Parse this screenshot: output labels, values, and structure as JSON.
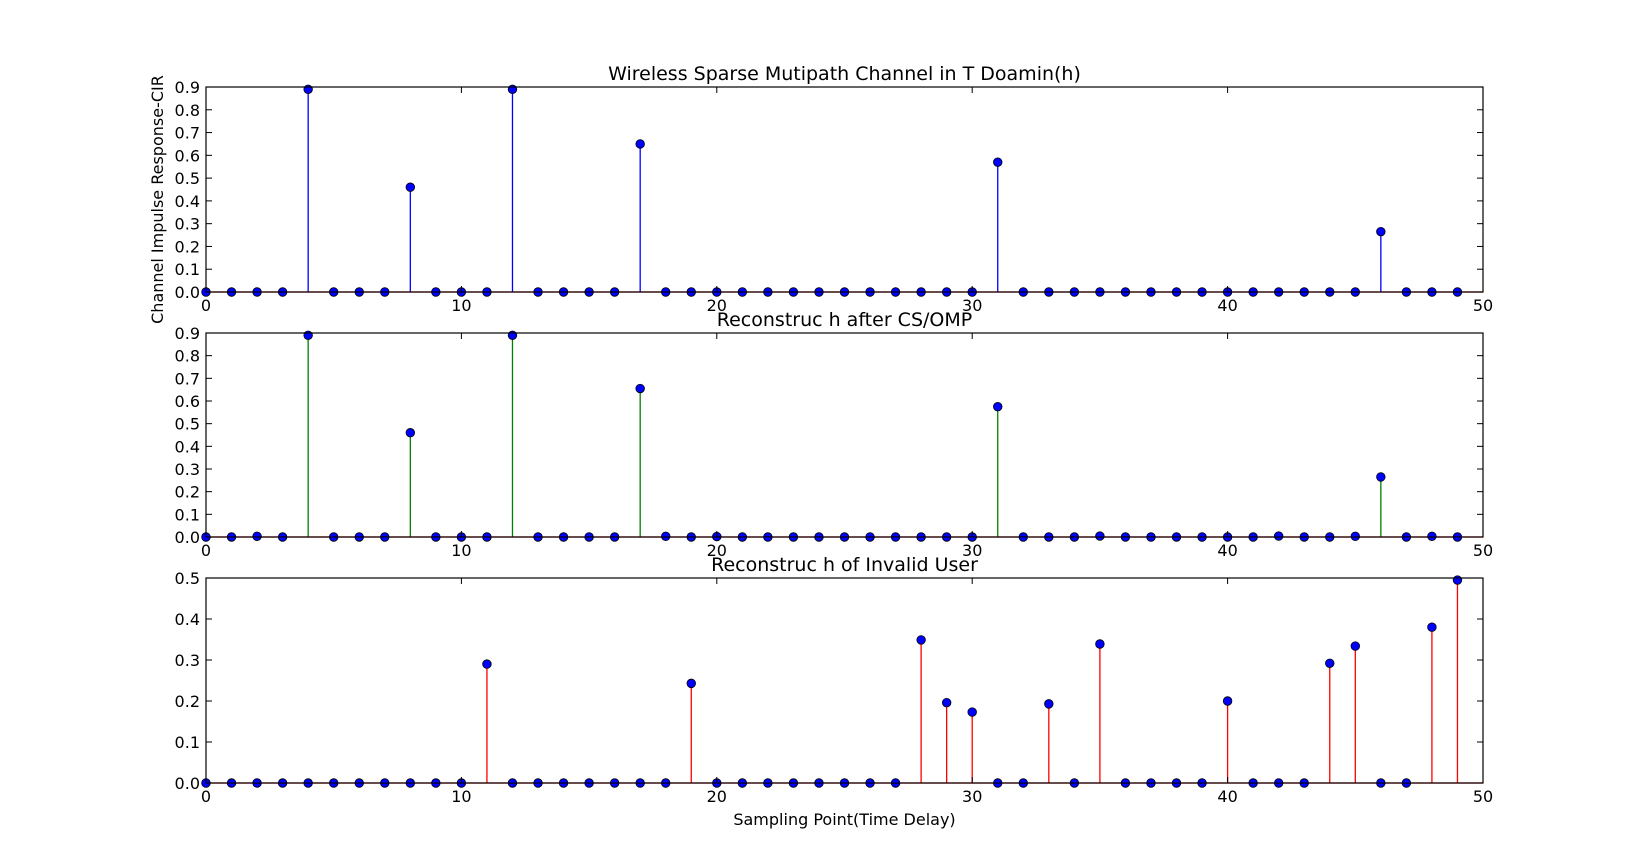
{
  "chart_data": [
    {
      "type": "stem",
      "title": "Wireless Sparse Mutipath Channel in T Doamin(h)",
      "xlabel": "",
      "ylabel": "Channel Impulse Response-CIR",
      "xlim": [
        0,
        50
      ],
      "ylim": [
        0,
        0.9
      ],
      "xticks": [
        "0",
        "10",
        "20",
        "30",
        "40",
        "50"
      ],
      "yticks": [
        "0.0",
        "0.1",
        "0.2",
        "0.3",
        "0.4",
        "0.5",
        "0.6",
        "0.7",
        "0.8",
        "0.9"
      ],
      "stem_color": "#0000ff",
      "marker_color": "#0000ff",
      "x": [
        0,
        1,
        2,
        3,
        4,
        5,
        6,
        7,
        8,
        9,
        10,
        11,
        12,
        13,
        14,
        15,
        16,
        17,
        18,
        19,
        20,
        21,
        22,
        23,
        24,
        25,
        26,
        27,
        28,
        29,
        30,
        31,
        32,
        33,
        34,
        35,
        36,
        37,
        38,
        39,
        40,
        41,
        42,
        43,
        44,
        45,
        46,
        47,
        48,
        49
      ],
      "values": [
        0,
        0,
        0,
        0,
        0.89,
        0,
        0,
        0,
        0.46,
        0,
        0,
        0,
        0.89,
        0,
        0,
        0,
        0,
        0.65,
        0,
        0,
        0,
        0,
        0,
        0,
        0,
        0,
        0,
        0,
        0,
        0,
        0,
        0.57,
        0,
        0,
        0,
        0,
        0,
        0,
        0,
        0,
        0,
        0,
        0,
        0,
        0,
        0,
        0.265,
        0,
        0,
        0
      ]
    },
    {
      "type": "stem",
      "title": "Reconstruc h after CS/OMP",
      "xlabel": "",
      "ylabel": "",
      "xlim": [
        0,
        50
      ],
      "ylim": [
        0,
        0.9
      ],
      "xticks": [
        "0",
        "10",
        "20",
        "30",
        "40",
        "50"
      ],
      "yticks": [
        "0.0",
        "0.1",
        "0.2",
        "0.3",
        "0.4",
        "0.5",
        "0.6",
        "0.7",
        "0.8",
        "0.9"
      ],
      "stem_color": "#008000",
      "marker_color": "#0000ff",
      "x": [
        0,
        1,
        2,
        3,
        4,
        5,
        6,
        7,
        8,
        9,
        10,
        11,
        12,
        13,
        14,
        15,
        16,
        17,
        18,
        19,
        20,
        21,
        22,
        23,
        24,
        25,
        26,
        27,
        28,
        29,
        30,
        31,
        32,
        33,
        34,
        35,
        36,
        37,
        38,
        39,
        40,
        41,
        42,
        43,
        44,
        45,
        46,
        47,
        48,
        49
      ],
      "values": [
        0,
        0,
        0.003,
        0,
        0.89,
        0,
        0,
        0,
        0.46,
        0,
        0,
        0,
        0.89,
        0,
        0,
        0,
        0,
        0.655,
        0.003,
        0,
        0.002,
        0,
        0,
        0,
        0,
        0,
        0,
        0,
        0,
        0,
        0,
        0.575,
        0,
        0,
        0,
        0.004,
        0,
        0,
        0,
        0,
        0,
        0,
        0.004,
        0,
        0,
        0.003,
        0.265,
        0,
        0.003,
        0
      ]
    },
    {
      "type": "stem",
      "title": "Reconstruc h of Invalid User",
      "xlabel": "Sampling Point(Time Delay)",
      "ylabel": "",
      "xlim": [
        0,
        50
      ],
      "ylim": [
        0,
        0.5
      ],
      "xticks": [
        "0",
        "10",
        "20",
        "30",
        "40",
        "50"
      ],
      "yticks": [
        "0.0",
        "0.1",
        "0.2",
        "0.3",
        "0.4",
        "0.5"
      ],
      "stem_color": "#ff0000",
      "marker_color": "#0000ff",
      "x": [
        0,
        1,
        2,
        3,
        4,
        5,
        6,
        7,
        8,
        9,
        10,
        11,
        12,
        13,
        14,
        15,
        16,
        17,
        18,
        19,
        20,
        21,
        22,
        23,
        24,
        25,
        26,
        27,
        28,
        29,
        30,
        31,
        32,
        33,
        34,
        35,
        36,
        37,
        38,
        39,
        40,
        41,
        42,
        43,
        44,
        45,
        46,
        47,
        48,
        49
      ],
      "values": [
        0,
        0,
        0,
        0,
        0,
        0,
        0,
        0,
        0,
        0,
        0,
        0.29,
        0,
        0,
        0,
        0,
        0,
        0,
        0,
        0.243,
        0,
        0,
        0,
        0,
        0,
        0,
        0,
        0,
        0.349,
        0.196,
        0.173,
        0,
        0,
        0.193,
        0,
        0.339,
        0,
        0,
        0,
        0,
        0.2,
        0,
        0,
        0,
        0.292,
        0.334,
        0,
        0,
        0.38,
        0.495
      ]
    }
  ]
}
